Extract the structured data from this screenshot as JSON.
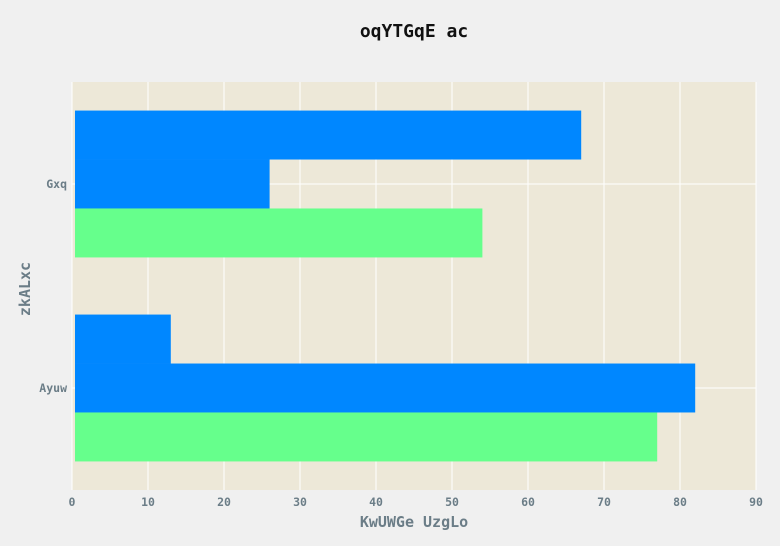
{
  "chart_data": {
    "type": "bar",
    "orientation": "horizontal",
    "title": "oqYTGqE ac",
    "xlabel": "KwUWGe UzgLo",
    "ylabel": "zkALxc",
    "categories": [
      "Gxq",
      "Ayuw"
    ],
    "series": [
      {
        "values": [
          67,
          13
        ],
        "color": "#0087ff"
      },
      {
        "values": [
          26,
          82
        ],
        "color": "#0087ff"
      },
      {
        "values": [
          54,
          77
        ],
        "color": "#66ff8c"
      }
    ],
    "xlim": [
      0,
      90
    ],
    "xticks": [
      0,
      10,
      20,
      30,
      40,
      50,
      60,
      70,
      80,
      90
    ],
    "grid": true,
    "background_color": "#ede8d8",
    "grid_color": "#ffffff"
  }
}
